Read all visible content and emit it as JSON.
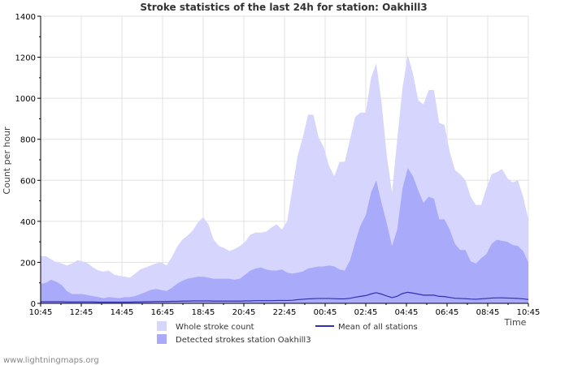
{
  "chart_data": {
    "type": "area",
    "title": "Stroke statistics of the last 24h for station: Oakhill3",
    "xlabel": "Time",
    "ylabel": "Count per hour",
    "ylim": [
      0,
      1400
    ],
    "yticks": [
      0,
      200,
      400,
      600,
      800,
      1000,
      1200,
      1400
    ],
    "grid": true,
    "legend_position": "bottom",
    "source": "www.lightningmaps.org",
    "x_start": "10:45",
    "x_end": "10:45",
    "x_step_minutes": 15,
    "xtick_labels": [
      "10:45",
      "12:45",
      "14:45",
      "16:45",
      "18:45",
      "20:45",
      "22:45",
      "00:45",
      "02:45",
      "04:45",
      "06:45",
      "08:45",
      "10:45"
    ],
    "colors": {
      "whole": "#d5d5fd",
      "detected": "#aaaafb",
      "mean": "#3030b0",
      "grid": "#e0e0e0",
      "axis": "#000000"
    },
    "series": [
      {
        "name": "Whole stroke count",
        "style": "area",
        "values": [
          230,
          230,
          215,
          200,
          195,
          185,
          195,
          210,
          205,
          195,
          175,
          160,
          155,
          160,
          140,
          135,
          130,
          125,
          145,
          165,
          175,
          185,
          195,
          200,
          185,
          225,
          275,
          310,
          330,
          355,
          395,
          420,
          385,
          310,
          280,
          270,
          255,
          265,
          280,
          300,
          335,
          345,
          345,
          350,
          370,
          385,
          360,
          400,
          560,
          720,
          810,
          920,
          920,
          810,
          760,
          670,
          620,
          690,
          690,
          800,
          910,
          930,
          930,
          1100,
          1170,
          980,
          720,
          540,
          800,
          1050,
          1210,
          1120,
          990,
          970,
          1040,
          1040,
          880,
          870,
          740,
          650,
          630,
          600,
          520,
          480,
          480,
          560,
          630,
          640,
          655,
          610,
          590,
          600,
          520,
          410
        ]
      },
      {
        "name": "Detected strokes station Oakhill3",
        "style": "area",
        "values": [
          95,
          100,
          115,
          105,
          90,
          60,
          45,
          45,
          45,
          40,
          35,
          30,
          25,
          30,
          28,
          25,
          30,
          30,
          35,
          45,
          55,
          65,
          70,
          65,
          60,
          75,
          95,
          110,
          120,
          125,
          130,
          130,
          125,
          120,
          120,
          120,
          120,
          115,
          120,
          140,
          160,
          170,
          175,
          165,
          160,
          160,
          165,
          150,
          145,
          150,
          155,
          170,
          175,
          180,
          180,
          185,
          180,
          165,
          160,
          210,
          300,
          380,
          430,
          540,
          600,
          490,
          390,
          280,
          360,
          560,
          660,
          620,
          550,
          490,
          520,
          510,
          410,
          410,
          360,
          290,
          260,
          260,
          205,
          195,
          220,
          240,
          290,
          310,
          305,
          300,
          285,
          280,
          255,
          200
        ]
      },
      {
        "name": "Mean of all stations",
        "style": "line",
        "values": [
          8,
          8,
          8,
          8,
          8,
          7,
          7,
          7,
          7,
          7,
          7,
          6,
          6,
          6,
          6,
          6,
          6,
          6,
          7,
          7,
          8,
          8,
          9,
          9,
          9,
          10,
          10,
          11,
          11,
          12,
          12,
          12,
          12,
          11,
          11,
          11,
          11,
          11,
          11,
          12,
          12,
          13,
          13,
          13,
          13,
          14,
          14,
          14,
          15,
          18,
          20,
          22,
          23,
          24,
          24,
          24,
          23,
          22,
          22,
          25,
          30,
          34,
          38,
          46,
          52,
          45,
          36,
          28,
          35,
          48,
          54,
          50,
          45,
          40,
          40,
          40,
          34,
          33,
          29,
          25,
          24,
          23,
          21,
          20,
          22,
          24,
          26,
          27,
          27,
          26,
          25,
          24,
          22,
          19
        ]
      }
    ]
  }
}
